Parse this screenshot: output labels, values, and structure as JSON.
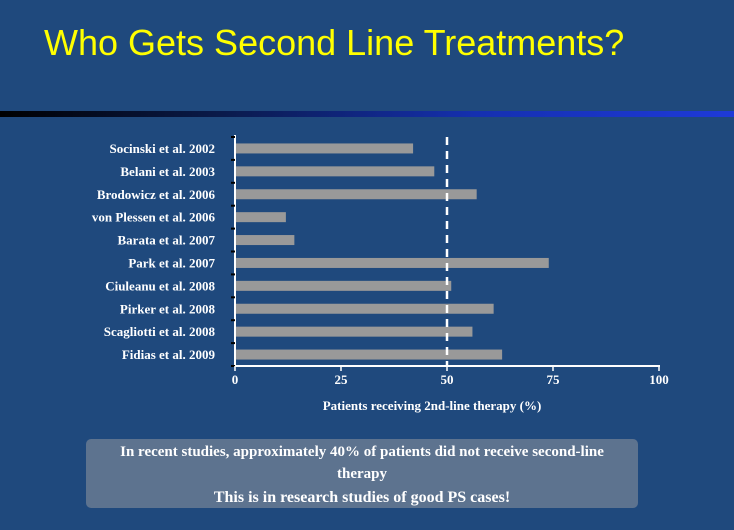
{
  "slide": {
    "title": "Who Gets Second Line Treatments?",
    "footer_line1": "In recent studies, approximately 40% of patients did not receive second-line therapy",
    "footer_line2": "This is in research studies of good PS cases!"
  },
  "colors": {
    "background": "#1f497d",
    "title": "#ffff00",
    "bar": "#999999",
    "axis": "#ffffff",
    "reference_line": "#ffffff",
    "footer_box": "#5d738f"
  },
  "chart_data": {
    "type": "bar",
    "orientation": "horizontal",
    "categories": [
      "Socinski et al. 2002",
      "Belani et al. 2003",
      "Brodowicz et al. 2006",
      "von Plessen et al. 2006",
      "Barata et al. 2007",
      "Park et al. 2007",
      "Ciuleanu et al. 2008",
      "Pirker et al. 2008",
      "Scagliotti et al. 2008",
      "Fidias et al. 2009"
    ],
    "values": [
      42,
      47,
      57,
      12,
      14,
      74,
      51,
      61,
      56,
      63
    ],
    "xlabel": "Patients receiving 2nd-line therapy (%)",
    "ylabel": "",
    "xlim": [
      0,
      100
    ],
    "xticks": [
      0,
      25,
      50,
      75,
      100
    ],
    "reference_line": 50,
    "grid": false
  }
}
